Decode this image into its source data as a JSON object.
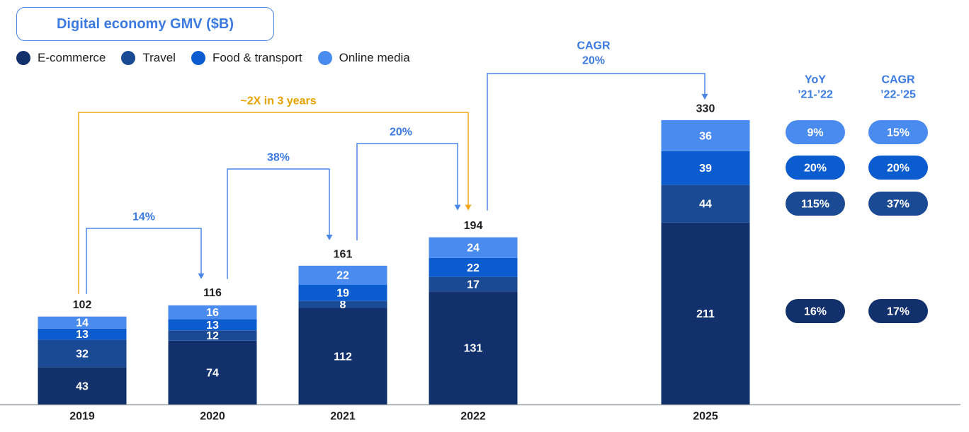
{
  "title": "Digital economy GMV ($B)",
  "colors": {
    "ecommerce": "#12306b",
    "travel": "#1a4a93",
    "food": "#0b5ccf",
    "media": "#4a8bf0",
    "bracket_blue": "#4a86e8",
    "bracket_gold": "#f2a516",
    "label_blue": "#3b7ae0",
    "gold_text": "#e8a200"
  },
  "legend": [
    {
      "label": "E-commerce",
      "color": "#12306b"
    },
    {
      "label": "Travel",
      "color": "#1a4a93"
    },
    {
      "label": "Food & transport",
      "color": "#0b5ccf"
    },
    {
      "label": "Online media",
      "color": "#4a8bf0"
    }
  ],
  "chart_data": {
    "type": "bar",
    "stacked": true,
    "categories": [
      "2019",
      "2020",
      "2021",
      "2022",
      "2025"
    ],
    "series": [
      {
        "name": "E-commerce",
        "values": [
          43,
          74,
          112,
          131,
          211
        ]
      },
      {
        "name": "Travel",
        "values": [
          32,
          12,
          8,
          17,
          44
        ]
      },
      {
        "name": "Food & transport",
        "values": [
          13,
          13,
          19,
          22,
          39
        ]
      },
      {
        "name": "Online media",
        "values": [
          14,
          16,
          22,
          24,
          36
        ]
      }
    ],
    "totals": [
      102,
      116,
      161,
      194,
      330
    ],
    "growth_annotations": [
      {
        "from": "2019",
        "to": "2020",
        "label": "14%"
      },
      {
        "from": "2020",
        "to": "2021",
        "label": "38%"
      },
      {
        "from": "2021",
        "to": "2022",
        "label": "20%"
      },
      {
        "from": "2019",
        "to": "2022",
        "label": "~2X in 3 years"
      },
      {
        "from": "2022",
        "to": "2025",
        "label_line1": "CAGR",
        "label_line2": "20%"
      }
    ],
    "side_table": {
      "headers": [
        {
          "line1": "YoY",
          "line2": "’21-’22"
        },
        {
          "line1": "CAGR",
          "line2": "’22-’25"
        }
      ],
      "rows": [
        {
          "series": "Online media",
          "yoy": "9%",
          "cagr": "15%"
        },
        {
          "series": "Food & transport",
          "yoy": "20%",
          "cagr": "20%"
        },
        {
          "series": "Travel",
          "yoy": "115%",
          "cagr": "37%"
        },
        {
          "series": "E-commerce",
          "yoy": "16%",
          "cagr": "17%"
        }
      ]
    }
  }
}
